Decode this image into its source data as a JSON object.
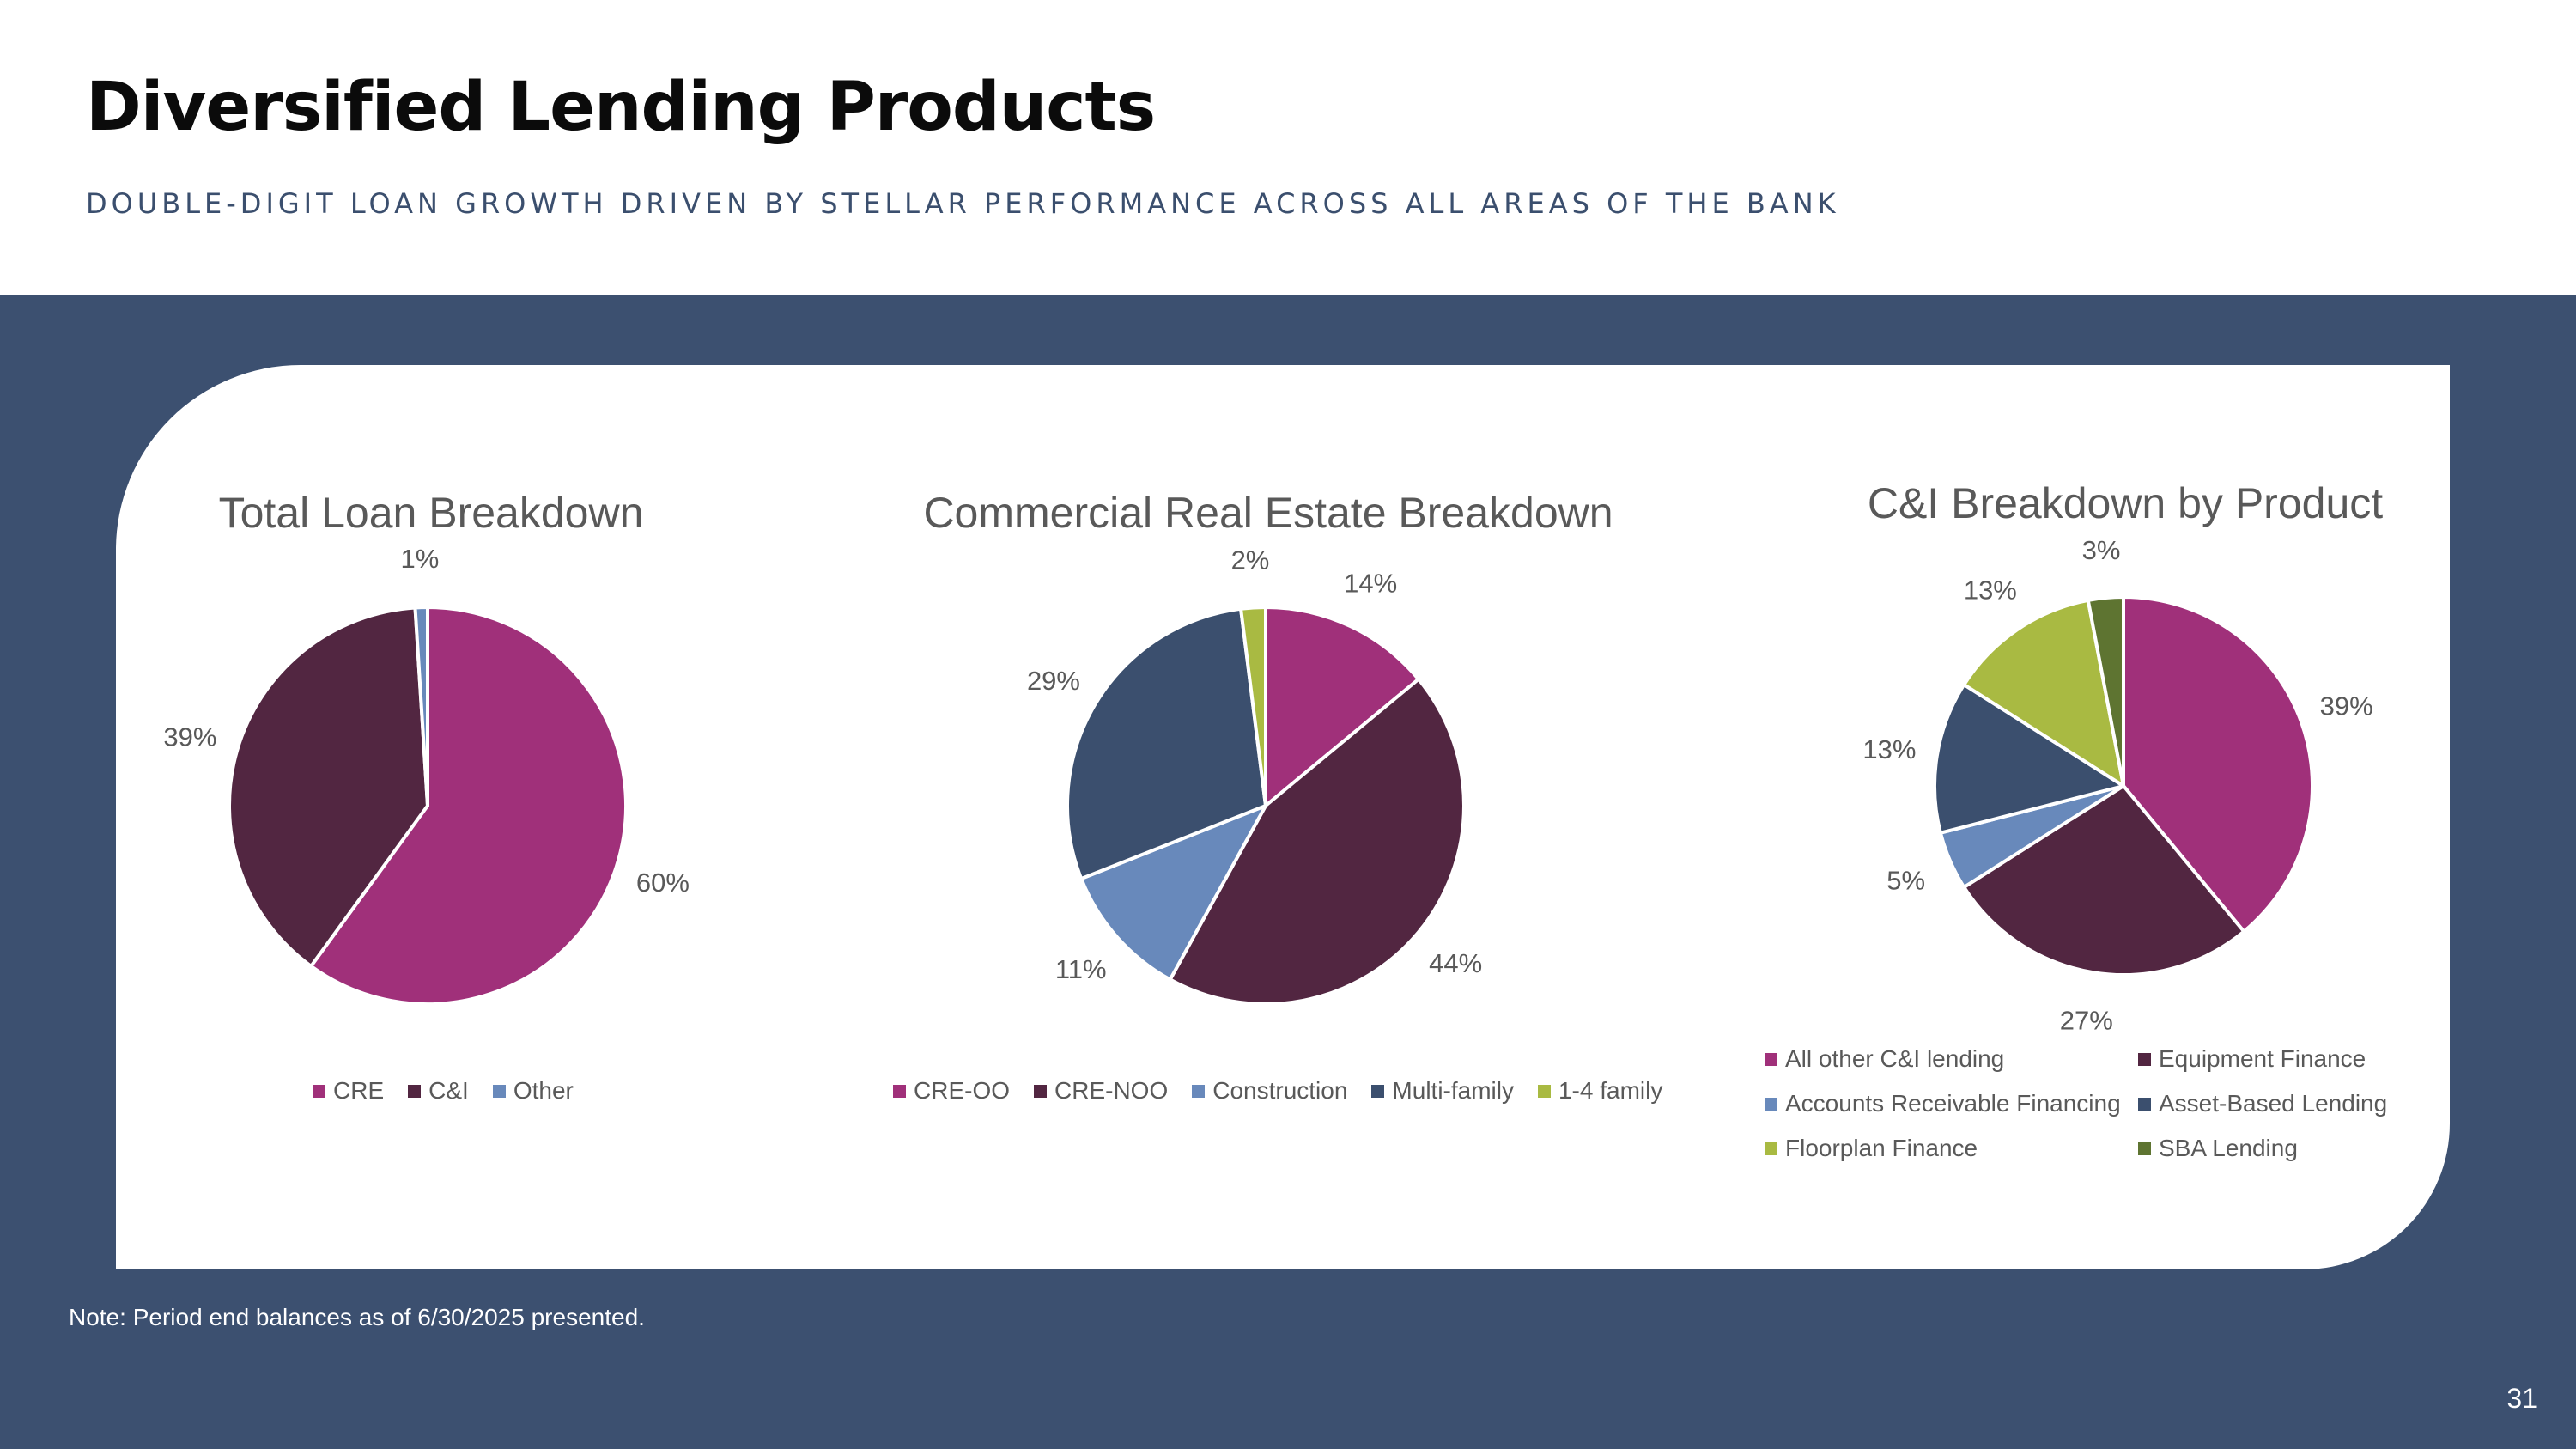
{
  "page": {
    "title": "Diversified Lending Products",
    "subtitle": "DOUBLE-DIGIT LOAN GROWTH DRIVEN BY STELLAR PERFORMANCE ACROSS ALL AREAS OF THE BANK",
    "note": "Note: Period end balances as of 6/30/2025 presented.",
    "page_number": "31"
  },
  "colors": {
    "background_band": "#3c5070",
    "magenta": "#a0307a",
    "plum": "#522641",
    "steel_blue": "#6889bb",
    "navy": "#3b4f6e",
    "lime": "#a9ba42",
    "olive": "#5e7431"
  },
  "chart_data": [
    {
      "type": "pie",
      "title": "Total Loan Breakdown",
      "categories": [
        "CRE",
        "C&I",
        "Other"
      ],
      "values": [
        60,
        39,
        1
      ],
      "labels": [
        "60%",
        "39%",
        "1%"
      ],
      "colors": [
        "#a0307a",
        "#522641",
        "#6889bb"
      ],
      "legend_position": "bottom"
    },
    {
      "type": "pie",
      "title": "Commercial Real Estate Breakdown",
      "categories": [
        "CRE-OO",
        "CRE-NOO",
        "Construction",
        "Multi-family",
        "1-4 family"
      ],
      "values": [
        14,
        44,
        11,
        29,
        2
      ],
      "labels": [
        "14%",
        "44%",
        "11%",
        "29%",
        "2%"
      ],
      "colors": [
        "#a0307a",
        "#522641",
        "#6889bb",
        "#3b4f6e",
        "#a9ba42"
      ],
      "legend_position": "bottom"
    },
    {
      "type": "pie",
      "title": "C&I Breakdown by Product",
      "categories": [
        "All other C&I lending",
        "Equipment Finance",
        "Accounts Receivable Financing",
        "Asset-Based Lending",
        "Floorplan Finance",
        "SBA Lending"
      ],
      "values": [
        39,
        27,
        5,
        13,
        13,
        3
      ],
      "labels": [
        "39%",
        "27%",
        "5%",
        "13%",
        "13%",
        "3%"
      ],
      "colors": [
        "#a0307a",
        "#522641",
        "#6889bb",
        "#3b4f6e",
        "#a9ba42",
        "#5e7431"
      ],
      "legend_position": "bottom"
    }
  ]
}
